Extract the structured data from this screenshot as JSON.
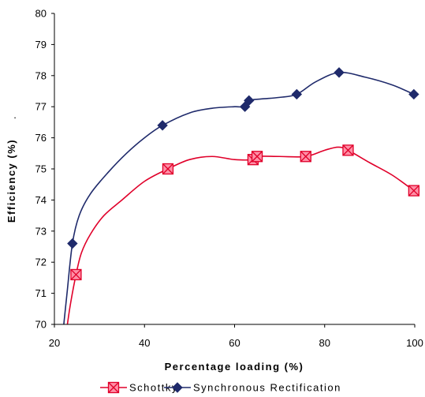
{
  "chart_data": {
    "type": "line",
    "xlabel": "Percentage loading (%)",
    "ylabel": "Efficiency (%)",
    "xlim": [
      20,
      100
    ],
    "ylim": [
      70,
      80
    ],
    "x_ticks": [
      20,
      40,
      60,
      80,
      100
    ],
    "y_ticks": [
      70,
      71,
      72,
      73,
      74,
      75,
      76,
      77,
      78,
      79,
      80
    ],
    "grid": false,
    "legend_position": "bottom",
    "annotation": ".",
    "series": [
      {
        "name": "Schottky",
        "color": "#e0002a",
        "marker": "boxed-x",
        "marker_fill": "#ff8fa6",
        "points": [
          [
            24.8,
            71.6
          ],
          [
            45.2,
            75.0
          ],
          [
            64.1,
            75.3
          ],
          [
            65.0,
            75.4
          ],
          [
            75.8,
            75.4
          ],
          [
            85.2,
            75.6
          ],
          [
            99.8,
            74.3
          ]
        ],
        "curve": [
          [
            22.6,
            69.7
          ],
          [
            23.5,
            70.6
          ],
          [
            24.8,
            71.6
          ],
          [
            26,
            72.3
          ],
          [
            28,
            72.9
          ],
          [
            31,
            73.5
          ],
          [
            35,
            74.0
          ],
          [
            40,
            74.6
          ],
          [
            45.2,
            75.0
          ],
          [
            50,
            75.3
          ],
          [
            55,
            75.4
          ],
          [
            60,
            75.3
          ],
          [
            64.1,
            75.3
          ],
          [
            65.0,
            75.4
          ],
          [
            70,
            75.4
          ],
          [
            75.8,
            75.4
          ],
          [
            80,
            75.6
          ],
          [
            83,
            75.7
          ],
          [
            85.2,
            75.6
          ],
          [
            90,
            75.2
          ],
          [
            95,
            74.8
          ],
          [
            99.8,
            74.3
          ]
        ]
      },
      {
        "name": "Synchronous Rectification",
        "color": "#1f2a6b",
        "marker": "diamond",
        "marker_fill": "#1f2a6b",
        "points": [
          [
            24.0,
            72.6
          ],
          [
            44.0,
            76.4
          ],
          [
            62.3,
            77.0
          ],
          [
            63.2,
            77.2
          ],
          [
            73.8,
            77.4
          ],
          [
            83.2,
            78.1
          ],
          [
            99.8,
            77.4
          ]
        ],
        "curve": [
          [
            21.8,
            69.6
          ],
          [
            22.8,
            71.0
          ],
          [
            24.0,
            72.6
          ],
          [
            25.5,
            73.5
          ],
          [
            28,
            74.2
          ],
          [
            32,
            74.9
          ],
          [
            36,
            75.5
          ],
          [
            40,
            76.0
          ],
          [
            44.0,
            76.4
          ],
          [
            50,
            76.8
          ],
          [
            55,
            76.95
          ],
          [
            60,
            77.0
          ],
          [
            62.3,
            77.0
          ],
          [
            63.2,
            77.2
          ],
          [
            66,
            77.25
          ],
          [
            70,
            77.3
          ],
          [
            73.8,
            77.4
          ],
          [
            78,
            77.8
          ],
          [
            83.2,
            78.1
          ],
          [
            89,
            77.95
          ],
          [
            95,
            77.7
          ],
          [
            99.8,
            77.4
          ]
        ]
      }
    ]
  }
}
